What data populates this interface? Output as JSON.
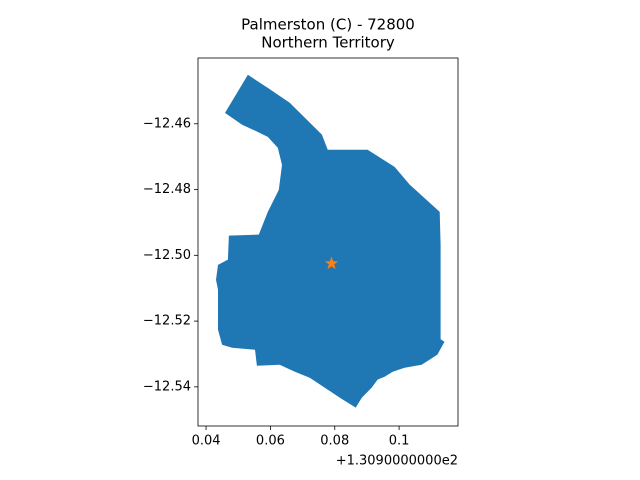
{
  "chart_data": {
    "type": "map",
    "title": "Palmerston (C) - 72800",
    "subtitle": "Northern Territory",
    "x_offset_label": "+1.3090000000e2",
    "xlim": [
      0.0375,
      0.1183
    ],
    "ylim": [
      -12.5519,
      -12.44
    ],
    "xticks": [
      0.04,
      0.06,
      0.08,
      0.1
    ],
    "yticks": [
      {
        "value": -12.46,
        "label": "−12.46"
      },
      {
        "value": -12.48,
        "label": "−12.48"
      },
      {
        "value": -12.5,
        "label": "−12.50"
      },
      {
        "value": -12.52,
        "label": "−12.52"
      },
      {
        "value": -12.54,
        "label": "−12.54"
      }
    ],
    "region": {
      "color": "#1f77b4",
      "x": [
        0.053,
        0.0592,
        0.066,
        0.0732,
        0.076,
        0.0778,
        0.0902,
        0.0986,
        0.1033,
        0.1126,
        0.1129,
        0.1129,
        0.1141,
        0.1119,
        0.1095,
        0.107,
        0.1017,
        0.098,
        0.0955,
        0.0933,
        0.0915,
        0.0884,
        0.0865,
        0.0816,
        0.0722,
        0.0676,
        0.0629,
        0.0558,
        0.0552,
        0.0481,
        0.045,
        0.0437,
        0.0437,
        0.0431,
        0.0437,
        0.0468,
        0.0471,
        0.0564,
        0.0592,
        0.0626,
        0.0636,
        0.0623,
        0.0592,
        0.0546,
        0.0512,
        0.0459
      ],
      "y": [
        -12.4451,
        -12.4491,
        -12.4536,
        -12.4606,
        -12.4633,
        -12.4679,
        -12.4679,
        -12.4731,
        -12.4785,
        -12.4868,
        -12.4968,
        -12.5255,
        -12.5263,
        -12.5302,
        -12.5317,
        -12.5333,
        -12.5342,
        -12.5354,
        -12.5369,
        -12.5378,
        -12.5402,
        -12.5433,
        -12.5463,
        -12.5433,
        -12.5372,
        -12.5354,
        -12.5333,
        -12.5336,
        -12.5287,
        -12.5281,
        -12.5272,
        -12.5226,
        -12.5105,
        -12.5074,
        -12.5029,
        -12.5013,
        -12.494,
        -12.4937,
        -12.4868,
        -12.4801,
        -12.4725,
        -12.4673,
        -12.464,
        -12.4618,
        -12.4603,
        -12.4567
      ]
    },
    "point": {
      "x": 0.079,
      "y": -12.5025,
      "color": "#ff7f0e",
      "marker": "star"
    }
  }
}
